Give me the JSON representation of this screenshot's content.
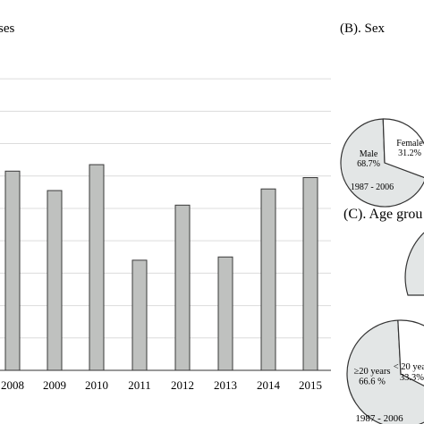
{
  "chart_data": [
    {
      "type": "bar",
      "panel": "A",
      "ylabel_partial": "ses",
      "categories": [
        "2008",
        "2009",
        "2010",
        "2011",
        "2012",
        "2013",
        "2014",
        "2015"
      ],
      "values": [
        6.15,
        5.55,
        6.35,
        3.4,
        5.1,
        3.5,
        5.6,
        5.95
      ],
      "ylim": [
        0,
        9.5
      ],
      "grid": true,
      "colors": {
        "bar_fill": "#bfc1bf",
        "bar_stroke": "#3a3a3a",
        "grid": "#dcdcdc",
        "axis": "#333333"
      }
    },
    {
      "type": "pie",
      "panel_label": "(B). Sex",
      "period": "1987 - 2006",
      "slices": [
        {
          "label": "Male",
          "value": 68.7,
          "value_label": "68.7%",
          "color": "#e3e6e6"
        },
        {
          "label": "Female",
          "value": 31.2,
          "value_label": "31.2%",
          "color": "#ffffff"
        }
      ]
    },
    {
      "type": "pie",
      "panel_label": "(C). Age grou",
      "period": "1987 - 2006",
      "slices": [
        {
          "label": "≥20 years",
          "value": 66.6,
          "value_label": "66.6 %",
          "color": "#e3e6e6"
        },
        {
          "label": "< 20 yea",
          "value": 33.3,
          "value_label": "33.3%",
          "color": "#ffffff"
        }
      ]
    }
  ]
}
